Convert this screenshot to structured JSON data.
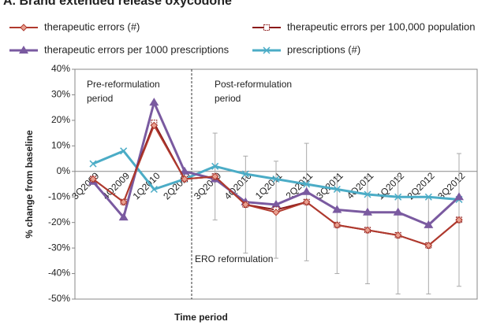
{
  "chart_data": {
    "type": "line",
    "title": "A. Brand extended release oxycodone",
    "xlabel": "Time period",
    "ylabel": "% change from baseline",
    "categories": [
      "3Q2009",
      "4Q2009",
      "1Q2010",
      "2Q2010",
      "3Q2010",
      "4Q2010",
      "1Q2011",
      "2Q2011",
      "3Q2011",
      "4Q2011",
      "1Q2012",
      "2Q2012",
      "3Q2012"
    ],
    "series": [
      {
        "name": "therapeutic errors (#)",
        "color": "#b03a2e",
        "marker": "diamond",
        "values": [
          -3,
          -12,
          18,
          -3,
          -2,
          -13,
          -16,
          -12,
          -21,
          -23,
          -25,
          -29,
          -19
        ]
      },
      {
        "name": "therapeutic errors per 100,000 population",
        "color": "#8b1a1a",
        "marker": "square",
        "values": [
          -3,
          -12,
          19,
          -3,
          -2,
          -13,
          -15,
          -12,
          -21,
          -23,
          -25,
          -29,
          -19
        ],
        "errors": [
          null,
          null,
          null,
          null,
          17,
          19,
          19,
          23,
          19,
          21,
          23,
          19,
          26
        ]
      },
      {
        "name": "therapeutic errors per 1000 prescriptions",
        "color": "#7a5aa0",
        "marker": "triangle",
        "values": [
          -4,
          -18,
          27,
          0,
          -3,
          -12,
          -13,
          -8,
          -15,
          -16,
          -16,
          -21,
          -10
        ]
      },
      {
        "name": "prescriptions (#)",
        "color": "#4bacc6",
        "marker": "x",
        "values": [
          3,
          8,
          -7,
          -3,
          2,
          -1,
          -3,
          -5,
          -7,
          -9,
          -10,
          -10,
          -11
        ]
      }
    ],
    "ylim": [
      -50,
      40
    ],
    "yticks": [
      {
        "value": -50,
        "label": "-50%"
      },
      {
        "value": -40,
        "label": "-40%"
      },
      {
        "value": -30,
        "label": "-30%"
      },
      {
        "value": -20,
        "label": "-20%"
      },
      {
        "value": -10,
        "label": "-10%"
      },
      {
        "value": 0,
        "label": "0%"
      },
      {
        "value": 10,
        "label": "10%"
      },
      {
        "value": 20,
        "label": "20%"
      },
      {
        "value": 30,
        "label": "30%"
      },
      {
        "value": 40,
        "label": "40%"
      }
    ],
    "annotations": [
      "Pre-reformulation period",
      "Post-reformulation period",
      "ERO reformulation"
    ],
    "pre_label": [
      "Pre-reformulation",
      "period"
    ],
    "post_label": [
      "Post-reformulation",
      "period"
    ]
  }
}
